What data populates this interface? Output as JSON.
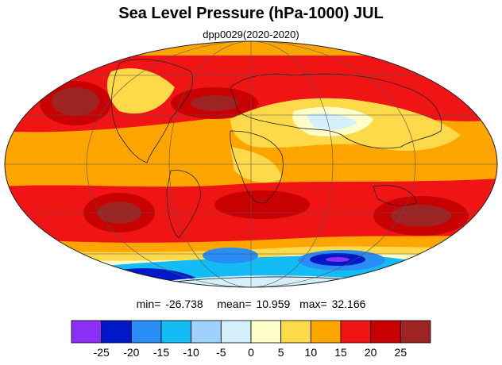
{
  "header": {
    "title": "Sea Level Pressure (hPa-1000) JUL",
    "subtitle": "dpp0029(2020-2020)"
  },
  "stats": {
    "min_label": "min=",
    "min": "-26.738",
    "mean_label": "mean=",
    "mean": "10.959",
    "max_label": "max=",
    "max": "32.166"
  },
  "colorbar": {
    "colors": [
      "#8b2ff5",
      "#0018c8",
      "#2a8cf5",
      "#14bcf5",
      "#9ed1fb",
      "#d3f0fb",
      "#fefec8",
      "#fed94a",
      "#fea500",
      "#f01414",
      "#c80000",
      "#9e2424"
    ],
    "tick_labels": [
      "-25",
      "-20",
      "-15",
      "-10",
      "-5",
      "0",
      "5",
      "10",
      "15",
      "20",
      "25"
    ]
  }
}
